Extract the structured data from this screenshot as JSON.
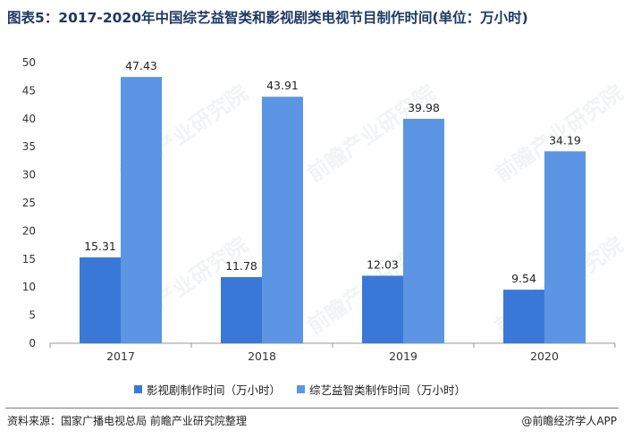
{
  "title": "图表5：2017-2020年中国综艺益智类和影视剧类电视节目制作时间(单位：万小时)",
  "source": "资料来源：国家广播电视总局 前瞻产业研究院整理",
  "brand": "@前瞻经济学人APP",
  "watermark": "前瞻产业研究院",
  "colors": {
    "series1": "#3a78d8",
    "series2": "#5b95e3",
    "axis": "#999999"
  },
  "chart_data": {
    "type": "bar",
    "categories": [
      "2017",
      "2018",
      "2019",
      "2020"
    ],
    "series": [
      {
        "name": "影视剧制作时间（万小时）",
        "values": [
          15.31,
          11.78,
          12.03,
          9.54
        ],
        "labels": [
          "15.31",
          "11.78",
          "12.03",
          "9.54"
        ]
      },
      {
        "name": "综艺益智类制作时间（万小时）",
        "values": [
          47.43,
          43.91,
          39.98,
          34.19
        ],
        "labels": [
          "47.43",
          "43.91",
          "39.98",
          "34.19"
        ]
      }
    ],
    "yticks": [
      "0",
      "5",
      "10",
      "15",
      "20",
      "25",
      "30",
      "35",
      "40",
      "45",
      "50"
    ],
    "ylim": [
      0,
      50
    ],
    "legend_position": "bottom",
    "grid": false
  }
}
